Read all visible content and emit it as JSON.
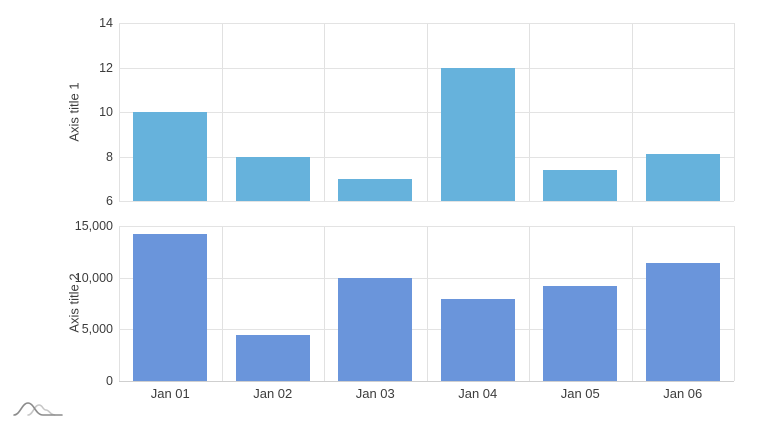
{
  "chart_data": [
    {
      "type": "bar",
      "panel": "top",
      "ylabel": "Axis title 1",
      "categories": [
        "Jan 01",
        "Jan 02",
        "Jan 03",
        "Jan 04",
        "Jan 05",
        "Jan 06"
      ],
      "values": [
        10,
        8,
        7,
        12,
        7.4,
        8.1
      ],
      "ylim": [
        6,
        14
      ],
      "yticks": [
        6,
        8,
        10,
        12,
        14
      ],
      "ytick_labels": [
        "6",
        "8",
        "10",
        "12",
        "14"
      ],
      "bar_color": "#66b2dc",
      "grid": true,
      "legend": false,
      "xlabel": ""
    },
    {
      "type": "bar",
      "panel": "bottom",
      "ylabel": "Axis title 2",
      "categories": [
        "Jan 01",
        "Jan 02",
        "Jan 03",
        "Jan 04",
        "Jan 05",
        "Jan 06"
      ],
      "values": [
        14200,
        4500,
        10000,
        7900,
        9200,
        11400
      ],
      "ylim": [
        0,
        15000
      ],
      "yticks": [
        0,
        5000,
        10000,
        15000
      ],
      "ytick_labels": [
        "0",
        "5,000",
        "10,000",
        "15,000"
      ],
      "bar_color": "#6a95db",
      "grid": true,
      "legend": false,
      "xlabel": ""
    }
  ],
  "x_axis_labels": [
    "Jan 01",
    "Jan 02",
    "Jan 03",
    "Jan 04",
    "Jan 05",
    "Jan 06"
  ],
  "colors": {
    "background": "#ffffff",
    "gridline": "#e3e3e3",
    "axis_line": "#cfcfcf",
    "text": "#3c3c3c",
    "bar_top": "#66b2dc",
    "bar_bottom": "#6a95db",
    "logo_dark": "#8c8c8c",
    "logo_light": "#c6c6c6"
  },
  "logo": "overlapping-distribution-curves"
}
